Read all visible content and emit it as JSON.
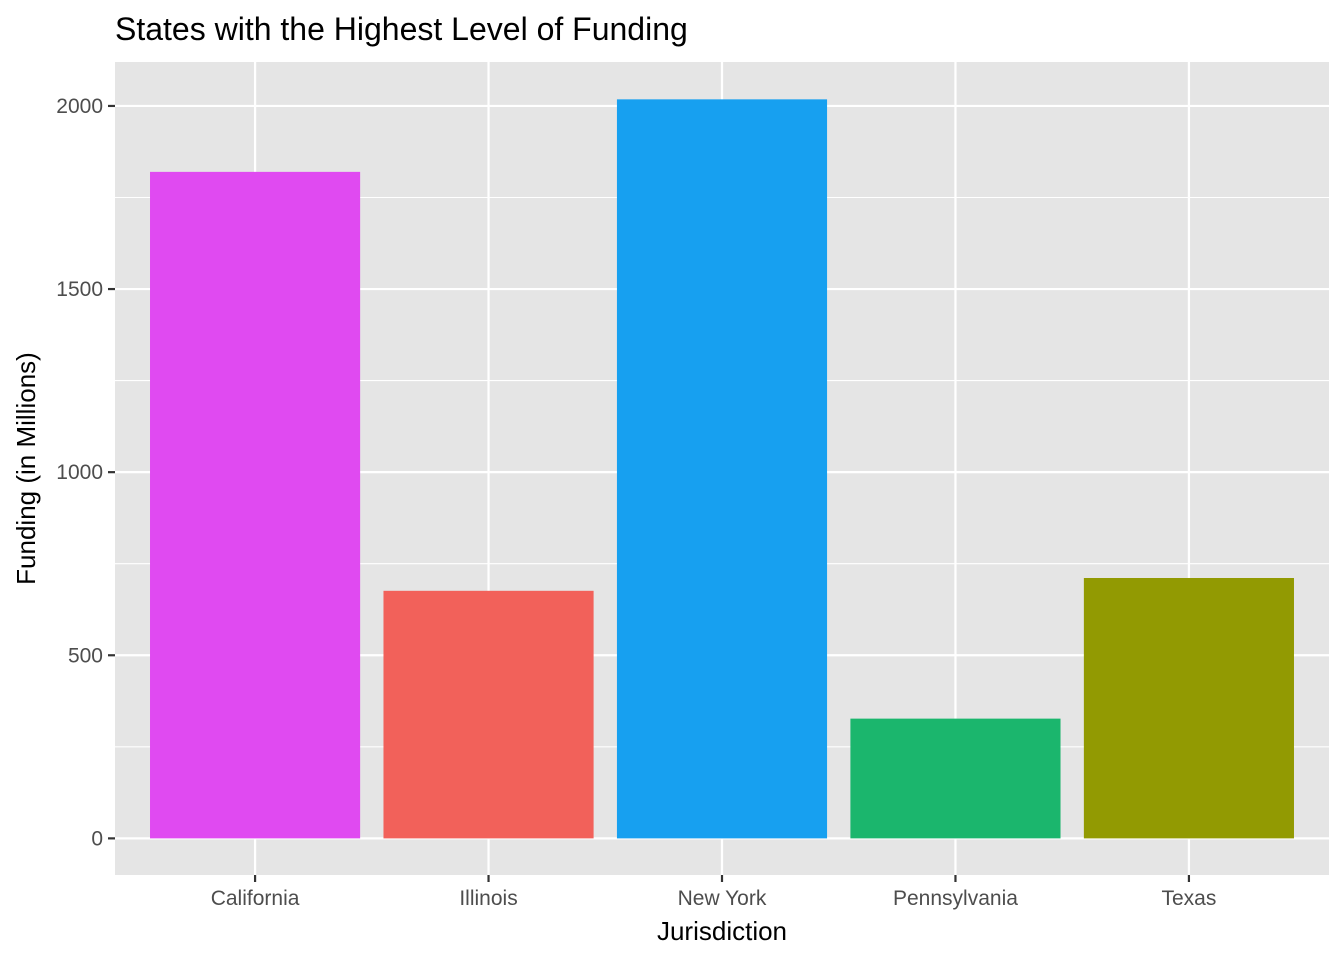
{
  "chart_data": {
    "type": "bar",
    "title": "States with the Highest Level of Funding",
    "xlabel": "Jurisdiction",
    "ylabel": "Funding (in Millions)",
    "categories": [
      "California",
      "Illinois",
      "New York",
      "Pennsylvania",
      "Texas"
    ],
    "values": [
      1820,
      676,
      2018,
      327,
      711
    ],
    "colors": [
      "#E04AF1",
      "#F2615A",
      "#17A0F0",
      "#1BB66D",
      "#929A02"
    ],
    "ylim": [
      -100,
      2120
    ],
    "yticks": [
      0,
      500,
      1000,
      1500,
      2000
    ],
    "ytick_labels": [
      "0",
      "500",
      "1000",
      "1500",
      "2000"
    ],
    "grid": true,
    "legend": "none",
    "panel_background": "#E5E5E5",
    "grid_color": "#FFFFFF"
  }
}
